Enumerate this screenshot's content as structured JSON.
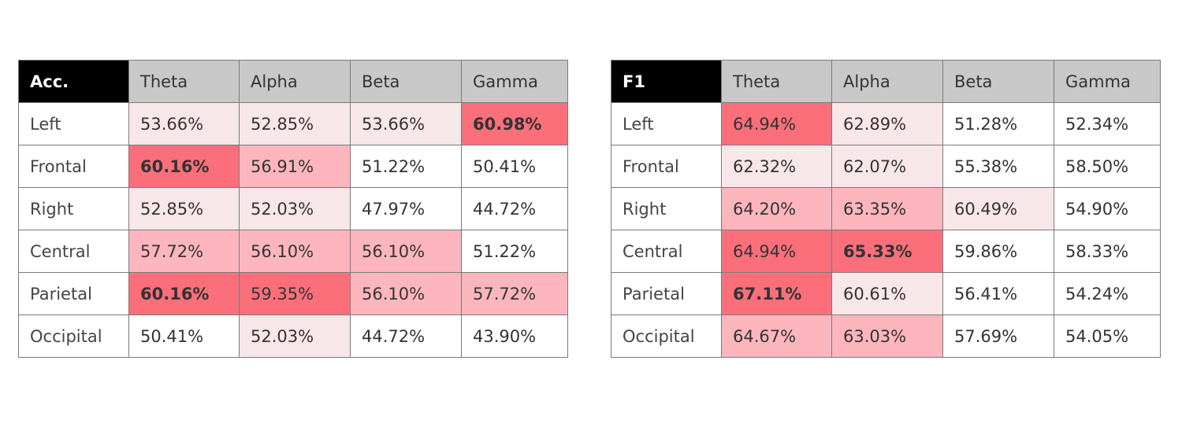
{
  "shading": {
    "levels": {
      "none": "#ffffff",
      "light": "#f8e7e8",
      "medium": "#fdb6bd",
      "strong": "#fb6f7b"
    }
  },
  "chart_data": [
    {
      "type": "table",
      "metric": "Acc.",
      "columns": [
        "Theta",
        "Alpha",
        "Beta",
        "Gamma"
      ],
      "rows": [
        {
          "label": "Left",
          "cells": [
            {
              "text": "53.66%",
              "value": 53.66,
              "shade": "light"
            },
            {
              "text": "52.85%",
              "value": 52.85,
              "shade": "light"
            },
            {
              "text": "53.66%",
              "value": 53.66,
              "shade": "light"
            },
            {
              "text": "60.98%",
              "value": 60.98,
              "shade": "strong",
              "bold": true
            }
          ]
        },
        {
          "label": "Frontal",
          "cells": [
            {
              "text": "60.16%",
              "value": 60.16,
              "shade": "strong",
              "bold": true
            },
            {
              "text": "56.91%",
              "value": 56.91,
              "shade": "medium"
            },
            {
              "text": "51.22%",
              "value": 51.22,
              "shade": "none"
            },
            {
              "text": "50.41%",
              "value": 50.41,
              "shade": "none"
            }
          ]
        },
        {
          "label": "Right",
          "cells": [
            {
              "text": "52.85%",
              "value": 52.85,
              "shade": "light"
            },
            {
              "text": "52.03%",
              "value": 52.03,
              "shade": "light"
            },
            {
              "text": "47.97%",
              "value": 47.97,
              "shade": "none"
            },
            {
              "text": "44.72%",
              "value": 44.72,
              "shade": "none"
            }
          ]
        },
        {
          "label": "Central",
          "cells": [
            {
              "text": "57.72%",
              "value": 57.72,
              "shade": "medium"
            },
            {
              "text": "56.10%",
              "value": 56.1,
              "shade": "medium"
            },
            {
              "text": "56.10%",
              "value": 56.1,
              "shade": "medium"
            },
            {
              "text": "51.22%",
              "value": 51.22,
              "shade": "none"
            }
          ]
        },
        {
          "label": "Parietal",
          "cells": [
            {
              "text": "60.16%",
              "value": 60.16,
              "shade": "strong",
              "bold": true
            },
            {
              "text": "59.35%",
              "value": 59.35,
              "shade": "strong"
            },
            {
              "text": "56.10%",
              "value": 56.1,
              "shade": "medium"
            },
            {
              "text": "57.72%",
              "value": 57.72,
              "shade": "medium"
            }
          ]
        },
        {
          "label": "Occipital",
          "cells": [
            {
              "text": "50.41%",
              "value": 50.41,
              "shade": "none"
            },
            {
              "text": "52.03%",
              "value": 52.03,
              "shade": "light"
            },
            {
              "text": "44.72%",
              "value": 44.72,
              "shade": "none"
            },
            {
              "text": "43.90%",
              "value": 43.9,
              "shade": "none"
            }
          ]
        }
      ]
    },
    {
      "type": "table",
      "metric": "F1",
      "columns": [
        "Theta",
        "Alpha",
        "Beta",
        "Gamma"
      ],
      "rows": [
        {
          "label": "Left",
          "cells": [
            {
              "text": "64.94%",
              "value": 64.94,
              "shade": "strong"
            },
            {
              "text": "62.89%",
              "value": 62.89,
              "shade": "light"
            },
            {
              "text": "51.28%",
              "value": 51.28,
              "shade": "none"
            },
            {
              "text": "52.34%",
              "value": 52.34,
              "shade": "none"
            }
          ]
        },
        {
          "label": "Frontal",
          "cells": [
            {
              "text": "62.32%",
              "value": 62.32,
              "shade": "light"
            },
            {
              "text": "62.07%",
              "value": 62.07,
              "shade": "light"
            },
            {
              "text": "55.38%",
              "value": 55.38,
              "shade": "none"
            },
            {
              "text": "58.50%",
              "value": 58.5,
              "shade": "none"
            }
          ]
        },
        {
          "label": "Right",
          "cells": [
            {
              "text": "64.20%",
              "value": 64.2,
              "shade": "medium"
            },
            {
              "text": "63.35%",
              "value": 63.35,
              "shade": "medium"
            },
            {
              "text": "60.49%",
              "value": 60.49,
              "shade": "light"
            },
            {
              "text": "54.90%",
              "value": 54.9,
              "shade": "none"
            }
          ]
        },
        {
          "label": "Central",
          "cells": [
            {
              "text": "64.94%",
              "value": 64.94,
              "shade": "strong"
            },
            {
              "text": "65.33%",
              "value": 65.33,
              "shade": "strong",
              "bold": true
            },
            {
              "text": "59.86%",
              "value": 59.86,
              "shade": "none"
            },
            {
              "text": "58.33%",
              "value": 58.33,
              "shade": "none"
            }
          ]
        },
        {
          "label": "Parietal",
          "cells": [
            {
              "text": "67.11%",
              "value": 67.11,
              "shade": "strong",
              "bold": true
            },
            {
              "text": "60.61%",
              "value": 60.61,
              "shade": "light"
            },
            {
              "text": "56.41%",
              "value": 56.41,
              "shade": "none"
            },
            {
              "text": "54.24%",
              "value": 54.24,
              "shade": "none"
            }
          ]
        },
        {
          "label": "Occipital",
          "cells": [
            {
              "text": "64.67%",
              "value": 64.67,
              "shade": "medium"
            },
            {
              "text": "63.03%",
              "value": 63.03,
              "shade": "medium"
            },
            {
              "text": "57.69%",
              "value": 57.69,
              "shade": "none"
            },
            {
              "text": "54.05%",
              "value": 54.05,
              "shade": "none"
            }
          ]
        }
      ]
    }
  ]
}
